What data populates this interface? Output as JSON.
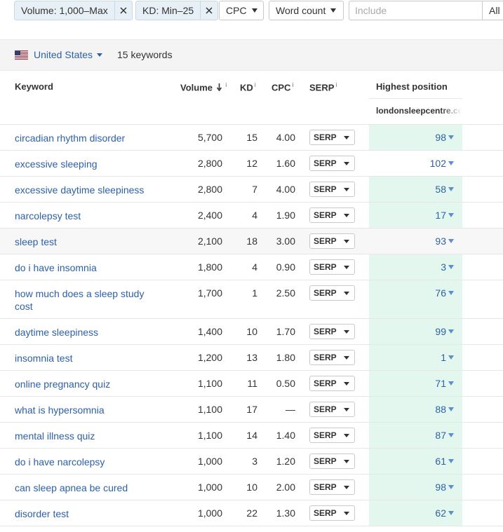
{
  "filters": {
    "volume_chip": "Volume: 1,000–Max",
    "kd_chip": "KD: Min–25",
    "cpc_label": "CPC",
    "word_count_label": "Word count",
    "include_placeholder": "Include",
    "all_label": "All"
  },
  "location": {
    "country": "United States",
    "keyword_count": "15 keywords"
  },
  "table": {
    "headers": {
      "keyword": "Keyword",
      "volume": "Volume",
      "kd": "KD",
      "cpc": "CPC",
      "serp": "SERP",
      "highest_position": "Highest position",
      "info": "i",
      "domain": "londonsleepcentre.co.uk"
    },
    "serp_label": "SERP",
    "rows": [
      {
        "keyword": "circadian rhythm disorder",
        "volume": "5,700",
        "kd": "15",
        "cpc": "4.00",
        "position": "98",
        "highlight": true
      },
      {
        "keyword": "excessive sleeping",
        "volume": "2,800",
        "kd": "12",
        "cpc": "1.60",
        "position": "102",
        "highlight": false
      },
      {
        "keyword": "excessive daytime sleepiness",
        "volume": "2,800",
        "kd": "7",
        "cpc": "4.00",
        "position": "58",
        "highlight": true
      },
      {
        "keyword": "narcolepsy test",
        "volume": "2,400",
        "kd": "4",
        "cpc": "1.90",
        "position": "17",
        "highlight": true
      },
      {
        "keyword": "sleep test",
        "volume": "2,100",
        "kd": "18",
        "cpc": "3.00",
        "position": "93",
        "highlight": true
      },
      {
        "keyword": "do i have insomnia",
        "volume": "1,800",
        "kd": "4",
        "cpc": "0.90",
        "position": "3",
        "highlight": true
      },
      {
        "keyword": "how much does a sleep study cost",
        "volume": "1,700",
        "kd": "1",
        "cpc": "2.50",
        "position": "76",
        "highlight": true
      },
      {
        "keyword": "daytime sleepiness",
        "volume": "1,400",
        "kd": "10",
        "cpc": "1.70",
        "position": "99",
        "highlight": true
      },
      {
        "keyword": "insomnia test",
        "volume": "1,200",
        "kd": "13",
        "cpc": "1.80",
        "position": "1",
        "highlight": true
      },
      {
        "keyword": "online pregnancy quiz",
        "volume": "1,100",
        "kd": "11",
        "cpc": "0.50",
        "position": "71",
        "highlight": true
      },
      {
        "keyword": "what is hypersomnia",
        "volume": "1,100",
        "kd": "17",
        "cpc": "—",
        "position": "88",
        "highlight": true
      },
      {
        "keyword": "mental illness quiz",
        "volume": "1,100",
        "kd": "14",
        "cpc": "1.40",
        "position": "87",
        "highlight": true
      },
      {
        "keyword": "do i have narcolepsy",
        "volume": "1,000",
        "kd": "3",
        "cpc": "1.20",
        "position": "61",
        "highlight": true
      },
      {
        "keyword": "can sleep apnea be cured",
        "volume": "1,000",
        "kd": "10",
        "cpc": "2.00",
        "position": "98",
        "highlight": true
      },
      {
        "keyword": "disorder test",
        "volume": "1,000",
        "kd": "22",
        "cpc": "1.30",
        "position": "62",
        "highlight": true
      }
    ]
  },
  "colors": {
    "link": "#2d61a4",
    "position_highlight": "#e3f7ee",
    "chip_bg": "#e7f0f6"
  }
}
